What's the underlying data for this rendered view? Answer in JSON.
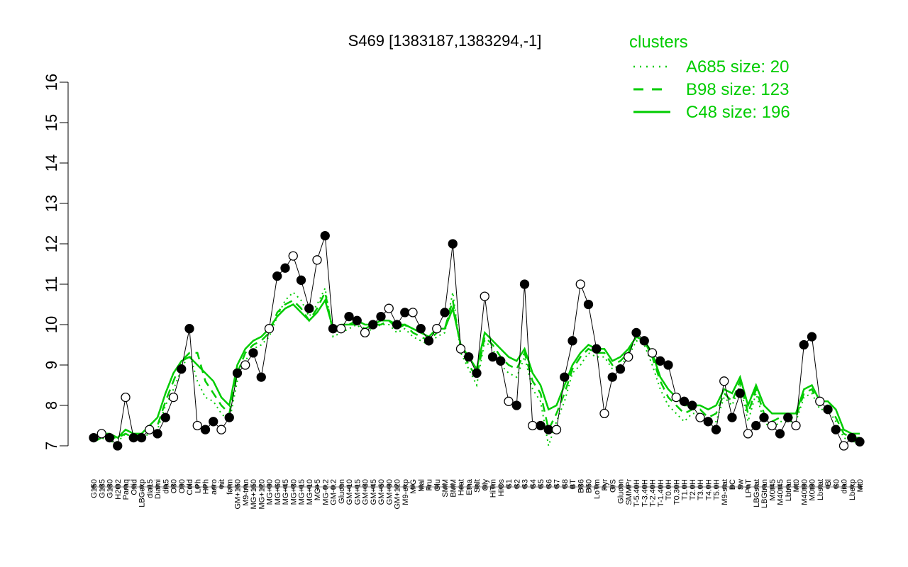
{
  "chart_data": {
    "type": "line",
    "title": "S469 [1383187,1383294,-1]",
    "xlabel": "",
    "ylabel": "",
    "ylim": [
      7,
      16
    ],
    "y_ticks": [
      7,
      8,
      9,
      10,
      11,
      12,
      13,
      14,
      15,
      16
    ],
    "grid": false,
    "legend_position": "top-right",
    "legend": {
      "title": "clusters",
      "entries": [
        {
          "label": "A685 size: 20",
          "style": "dotted"
        },
        {
          "label": "B98 size: 123",
          "style": "dashed"
        },
        {
          "label": "C48 size: 196",
          "style": "solid"
        }
      ]
    },
    "categories": [
      "G150",
      "G135",
      "G180",
      "H2O2",
      "Paraq",
      "Oxid",
      "LBGexp",
      "dia15",
      "Diami",
      "dia5",
      "C30",
      "C90",
      "Cold",
      "LPh",
      "HPh",
      "aero",
      "nit",
      "ferm",
      "GM+150",
      "M9-tran",
      "MG+150",
      "MG+120",
      "MG+90",
      "MG+60",
      "MG+45",
      "MG+30",
      "MG+15",
      "MG+10",
      "MG+5",
      "MG-0.2",
      "GM-0.2",
      "Glucon",
      "GM+10",
      "GM+15",
      "GM+30",
      "GM+45",
      "GM+60",
      "GM+90",
      "GM+120",
      "M9-exp",
      "M/G",
      "Mal",
      "Fru",
      "Glu",
      "SMM",
      "BMM",
      "Heat",
      "Etha",
      "Salt",
      "Gly",
      "HiTm",
      "HiOs",
      "S1",
      "S2",
      "S3",
      "S4",
      "S5",
      "S6",
      "S7",
      "S8",
      "BT",
      "B36",
      "B60",
      "LoTm",
      "Pyr",
      "G/S",
      "Glucon2",
      "SMMPr",
      "T-5.40H",
      "T-3.40H",
      "T-2.40H",
      "T-1.40H",
      "T0.0H",
      "T0.30H",
      "T1.0H",
      "T2.0H",
      "T3.0H",
      "T4.0H",
      "T5.0H",
      "M9-stat",
      "BC",
      "Sw",
      "LPhT",
      "LBGstat",
      "LBGtran",
      "M0t45",
      "M40t45",
      "Lbtran",
      "Mt0",
      "M40t90",
      "M0t90",
      "Lbstat",
      "Bl",
      "S0",
      "dia0",
      "Lbexp",
      "M40t0"
    ],
    "visible_tick_labels": [
      "G150",
      "G135",
      "G180",
      "H2O2",
      "Paraq",
      "Oxid",
      "LBGexp",
      "dia15",
      "Diami",
      "dia5",
      "C30",
      "C90",
      "Cold",
      "LPh",
      "HPh",
      "aero",
      "nit",
      "ferm",
      "GM+150",
      "M9-tran",
      "MG+150",
      "MG+120",
      "MG+90",
      "MG+60",
      "MG+45",
      "MG+30",
      "MG+15",
      "MG+10",
      "MG+5",
      "MG-0.2",
      "GM-0.2",
      "Glucon",
      "GM+10",
      "GM+15",
      "GM+30",
      "GM+45",
      "GM+60",
      "GM+90",
      "GM+120",
      "M9-exp",
      "M/G",
      "Mal",
      "Fru",
      "Glu",
      "SMM",
      "BMM",
      "Heat",
      "Etha",
      "Salt",
      "Gly",
      "HiTm",
      "HiOs",
      "S1",
      "S2",
      "S3",
      "S4",
      "S5",
      "S6",
      "S7",
      "S8",
      "BT",
      "B36",
      "B60",
      "LoTm",
      "Pyr",
      "G/S",
      "Glucon",
      "SMMPr",
      "T-5.40H",
      "T-3.40H",
      "T-2.40H",
      "T-1.40H",
      "T0.0H",
      "T0.30H",
      "T1.0H",
      "T2.0H",
      "T3.0H",
      "T4.0H",
      "T5.0H",
      "M9-stat",
      "BC",
      "Sw",
      "LPhT",
      "LBGstat",
      "LBGtran",
      "M0t45",
      "M40t45",
      "Lbtran",
      "Mt0",
      "M40t90",
      "M0t90",
      "Lbstat",
      "Bl",
      "S0",
      "dia0",
      "Lbexp",
      "Mt0"
    ],
    "series": [
      {
        "style": "black-line-with-points",
        "values": [
          7.2,
          7.3,
          7.2,
          7.0,
          8.2,
          7.2,
          7.2,
          7.4,
          7.3,
          7.7,
          8.2,
          8.9,
          9.9,
          7.5,
          7.4,
          7.6,
          7.4,
          7.7,
          8.8,
          9.0,
          9.3,
          8.7,
          9.9,
          11.2,
          11.4,
          11.7,
          11.1,
          10.4,
          11.6,
          12.2,
          9.9,
          9.9,
          10.2,
          10.1,
          9.8,
          10.0,
          10.2,
          10.4,
          10.0,
          10.3,
          10.3,
          9.9,
          9.6,
          9.9,
          10.3,
          12.0,
          9.4,
          9.2,
          8.8,
          10.7,
          9.2,
          9.1,
          8.1,
          8.0,
          11.0,
          7.5,
          7.5,
          7.4,
          7.4,
          8.7,
          9.6,
          11.0,
          10.5,
          9.4,
          7.8,
          8.7,
          8.9,
          9.2,
          9.8,
          9.6,
          9.3,
          9.1,
          9.0,
          8.2,
          8.1,
          8.0,
          7.7,
          7.6,
          7.4,
          8.6,
          7.7,
          8.3,
          7.3,
          7.5,
          7.7,
          7.5,
          7.3,
          7.7,
          7.5,
          9.5,
          9.7,
          8.1,
          7.9,
          7.4,
          7.0,
          7.2,
          7.1
        ]
      },
      {
        "style": "green-dotted",
        "values": [
          7.1,
          7.2,
          7.1,
          7.1,
          7.3,
          7.2,
          7.2,
          7.3,
          7.4,
          8.0,
          8.4,
          8.9,
          9.3,
          8.6,
          8.2,
          8.1,
          7.8,
          7.6,
          8.6,
          9.1,
          9.4,
          9.5,
          9.7,
          10.2,
          10.6,
          10.8,
          10.6,
          10.2,
          10.5,
          10.9,
          9.7,
          9.8,
          9.9,
          10.0,
          9.8,
          9.9,
          10.0,
          10.0,
          9.8,
          9.9,
          9.7,
          9.6,
          9.5,
          9.7,
          9.8,
          10.8,
          9.3,
          8.9,
          8.5,
          9.6,
          9.4,
          9.0,
          8.8,
          8.7,
          9.2,
          8.4,
          8.1,
          7.0,
          7.6,
          8.1,
          8.8,
          9.0,
          9.3,
          9.2,
          9.2,
          8.9,
          9.0,
          9.2,
          9.6,
          9.5,
          9.0,
          8.4,
          8.0,
          7.8,
          7.6,
          7.8,
          7.8,
          7.5,
          7.6,
          8.2,
          8.0,
          8.5,
          7.6,
          8.3,
          7.6,
          7.4,
          7.6,
          7.6,
          7.6,
          8.2,
          8.3,
          7.9,
          7.9,
          7.6,
          7.2,
          7.1,
          7.1
        ]
      },
      {
        "style": "green-dashed",
        "values": [
          7.1,
          7.2,
          7.2,
          7.2,
          7.3,
          7.2,
          7.3,
          7.4,
          7.5,
          8.1,
          8.6,
          9.1,
          9.3,
          9.3,
          8.6,
          8.3,
          8.0,
          7.8,
          8.8,
          9.3,
          9.5,
          9.6,
          9.8,
          10.3,
          10.5,
          10.6,
          10.4,
          10.1,
          10.4,
          10.8,
          9.8,
          9.9,
          10.0,
          10.0,
          9.9,
          10.0,
          10.0,
          10.1,
          9.9,
          10.0,
          9.8,
          9.7,
          9.6,
          9.8,
          9.9,
          10.6,
          9.4,
          9.0,
          8.7,
          9.7,
          9.5,
          9.2,
          9.0,
          8.9,
          9.3,
          8.6,
          8.3,
          7.4,
          7.8,
          8.3,
          8.9,
          9.2,
          9.4,
          9.3,
          9.3,
          9.0,
          9.1,
          9.3,
          9.7,
          9.6,
          9.2,
          8.6,
          8.2,
          8.0,
          7.8,
          7.9,
          7.9,
          7.7,
          7.8,
          8.3,
          8.1,
          8.6,
          7.8,
          8.4,
          7.8,
          7.6,
          7.7,
          7.7,
          7.7,
          8.3,
          8.4,
          8.0,
          8.0,
          7.7,
          7.3,
          7.2,
          7.2
        ]
      },
      {
        "style": "green-solid",
        "values": [
          7.2,
          7.3,
          7.3,
          7.2,
          7.4,
          7.3,
          7.3,
          7.5,
          7.7,
          8.3,
          8.8,
          9.1,
          9.2,
          9.0,
          8.8,
          8.6,
          8.2,
          8.0,
          9.0,
          9.4,
          9.6,
          9.7,
          9.9,
          10.2,
          10.4,
          10.5,
          10.3,
          10.1,
          10.3,
          10.6,
          9.9,
          10.0,
          10.0,
          10.1,
          10.0,
          10.0,
          10.1,
          10.1,
          10.0,
          10.0,
          9.9,
          9.8,
          9.7,
          9.9,
          9.9,
          10.4,
          9.5,
          9.2,
          8.9,
          9.8,
          9.6,
          9.4,
          9.2,
          9.1,
          9.4,
          8.8,
          8.5,
          7.9,
          8.0,
          8.5,
          9.0,
          9.3,
          9.5,
          9.4,
          9.4,
          9.1,
          9.2,
          9.4,
          9.7,
          9.6,
          9.3,
          8.7,
          8.4,
          8.2,
          8.0,
          8.0,
          8.0,
          7.9,
          8.0,
          8.4,
          8.3,
          8.7,
          8.0,
          8.5,
          8.0,
          7.8,
          7.8,
          7.8,
          7.8,
          8.4,
          8.5,
          8.1,
          8.1,
          7.9,
          7.4,
          7.3,
          7.3
        ]
      }
    ]
  }
}
